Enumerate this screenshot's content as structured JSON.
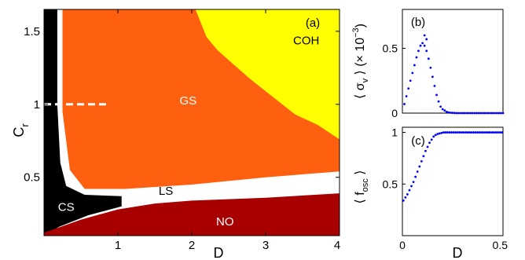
{
  "chart_data": [
    {
      "panel": "(a)",
      "type": "heatmap",
      "xlabel": "D",
      "ylabel": "C",
      "ylabel_subscript": "r",
      "xlim": [
        0,
        4
      ],
      "ylim": [
        0.1,
        1.65
      ],
      "xticks": [
        "1",
        "2",
        "3",
        "4"
      ],
      "yticks": [
        "0.5",
        "1",
        "1.5"
      ],
      "regions": [
        {
          "label": "GS",
          "color": "#ff6010",
          "label_at": [
            1.95,
            1.0
          ]
        },
        {
          "label": "COH",
          "color": "#ffff00",
          "label_at": [
            3.55,
            1.41
          ]
        },
        {
          "label": "LS",
          "color": "#ffffff",
          "label_at": [
            1.65,
            0.38
          ]
        },
        {
          "label": "CS",
          "color": "#000000",
          "label_at": [
            0.3,
            0.27
          ]
        },
        {
          "label": "NO",
          "color": "#a80000",
          "label_at": [
            2.45,
            0.17
          ]
        }
      ],
      "gs_lower_boundary": [
        [
          0.25,
          1.65
        ],
        [
          0.25,
          0.95
        ],
        [
          0.35,
          0.55
        ],
        [
          0.55,
          0.42
        ],
        [
          1.1,
          0.42
        ],
        [
          2.0,
          0.45
        ],
        [
          3.0,
          0.5
        ],
        [
          4.0,
          0.54
        ]
      ],
      "coh_boundary": [
        [
          2.05,
          1.65
        ],
        [
          2.2,
          1.46
        ],
        [
          2.35,
          1.37
        ],
        [
          2.55,
          1.28
        ],
        [
          2.8,
          1.17
        ],
        [
          3.1,
          1.05
        ],
        [
          3.4,
          0.93
        ],
        [
          3.7,
          0.86
        ],
        [
          4.0,
          0.76
        ]
      ],
      "no_upper_boundary": [
        [
          0.0,
          0.12
        ],
        [
          0.5,
          0.21
        ],
        [
          1.0,
          0.28
        ],
        [
          1.5,
          0.32
        ],
        [
          2.0,
          0.34
        ],
        [
          3.0,
          0.36
        ],
        [
          4.0,
          0.39
        ]
      ],
      "dashed_line": {
        "y": 1.0,
        "x_range": [
          0.0,
          0.85
        ]
      }
    },
    {
      "panel": "(b)",
      "type": "scatter",
      "ylabel": "⟨ σ",
      "ylabel_subscript": "v",
      "ylabel_suffix": " ⟩ (× 10",
      "ylabel_exp": "−3",
      "ylabel_end": ")",
      "xlim": [
        0,
        0.5
      ],
      "ylim": [
        0,
        0.8
      ],
      "yticks": [
        "0",
        "0.5"
      ],
      "color": "#0000ff",
      "x": [
        0.01,
        0.02,
        0.03,
        0.04,
        0.05,
        0.06,
        0.07,
        0.08,
        0.09,
        0.1,
        0.11,
        0.12,
        0.13,
        0.14,
        0.15,
        0.16,
        0.17,
        0.18,
        0.19,
        0.2,
        0.21,
        0.22,
        0.23,
        0.24,
        0.25,
        0.26,
        0.27,
        0.28,
        0.29,
        0.3,
        0.31,
        0.32,
        0.33,
        0.34,
        0.35,
        0.36,
        0.37,
        0.38,
        0.39,
        0.4,
        0.41,
        0.42,
        0.43,
        0.44,
        0.45,
        0.46,
        0.47,
        0.48,
        0.49,
        0.5
      ],
      "y": [
        0.07,
        0.13,
        0.19,
        0.25,
        0.31,
        0.37,
        0.43,
        0.48,
        0.52,
        0.54,
        0.52,
        0.48,
        0.42,
        0.35,
        0.28,
        0.21,
        0.14,
        0.09,
        0.05,
        0.03,
        0.02,
        0.01,
        0.005,
        0.003,
        0.002,
        0.001,
        0.0,
        0.0,
        0.0,
        0.0,
        0.0,
        0.0,
        0.0,
        0.0,
        0.0,
        0.0,
        0.0,
        0.0,
        0.0,
        0.0,
        0.0,
        0.0,
        0.0,
        0.0,
        0.0,
        0.0,
        0.0,
        0.0,
        0.0,
        0.0
      ],
      "extra_points": [
        [
          0.11,
          0.6
        ],
        [
          0.12,
          0.57
        ]
      ]
    },
    {
      "panel": "(c)",
      "type": "scatter",
      "xlabel": "D",
      "ylabel": "⟨ f",
      "ylabel_subscript": "osc",
      "ylabel_suffix": " ⟩",
      "xlim": [
        0,
        0.5
      ],
      "ylim": [
        0,
        1.05
      ],
      "xticks": [
        "0",
        "0.5"
      ],
      "yticks": [
        "0.5",
        "1"
      ],
      "color": "#0000ff",
      "x": [
        0.005,
        0.015,
        0.025,
        0.035,
        0.045,
        0.055,
        0.065,
        0.075,
        0.085,
        0.095,
        0.105,
        0.115,
        0.125,
        0.135,
        0.145,
        0.155,
        0.165,
        0.175,
        0.185,
        0.195,
        0.205,
        0.215,
        0.225,
        0.235,
        0.245,
        0.255,
        0.265,
        0.275,
        0.285,
        0.295,
        0.305,
        0.315,
        0.325,
        0.335,
        0.345,
        0.355,
        0.365,
        0.375,
        0.385,
        0.395,
        0.405,
        0.415,
        0.425,
        0.435,
        0.445,
        0.455,
        0.465,
        0.475,
        0.485,
        0.495
      ],
      "y": [
        0.34,
        0.37,
        0.4,
        0.44,
        0.48,
        0.52,
        0.57,
        0.62,
        0.67,
        0.72,
        0.77,
        0.82,
        0.86,
        0.9,
        0.93,
        0.96,
        0.975,
        0.985,
        0.99,
        0.995,
        1.0,
        1.0,
        1.0,
        1.0,
        1.0,
        1.0,
        1.0,
        1.0,
        1.0,
        1.0,
        1.0,
        1.0,
        1.0,
        1.0,
        1.0,
        1.0,
        1.0,
        1.0,
        1.0,
        1.0,
        1.0,
        1.0,
        1.0,
        1.0,
        1.0,
        1.0,
        1.0,
        1.0,
        1.0,
        1.0
      ]
    }
  ]
}
